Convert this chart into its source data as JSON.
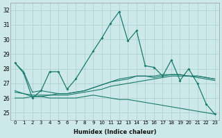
{
  "xlabel": "Humidex (Indice chaleur)",
  "xlim": [
    -0.5,
    23.5
  ],
  "ylim": [
    24.5,
    32.5
  ],
  "yticks": [
    25,
    26,
    27,
    28,
    29,
    30,
    31,
    32
  ],
  "xticks": [
    0,
    1,
    2,
    3,
    4,
    5,
    6,
    7,
    8,
    9,
    10,
    11,
    12,
    13,
    14,
    15,
    16,
    17,
    18,
    19,
    20,
    21,
    22,
    23
  ],
  "bg_color": "#cce8e8",
  "line_color": "#1a7a6e",
  "grid_color": "#aacece",
  "series_main": [
    28.4,
    27.7,
    26.0,
    26.5,
    27.8,
    27.8,
    26.6,
    27.3,
    29.2,
    30.1,
    31.1,
    31.9,
    29.9,
    30.6,
    28.2,
    28.1,
    27.5,
    28.6,
    27.2,
    28.0,
    27.0,
    25.6,
    24.9
  ],
  "series_main_x": [
    0,
    1,
    2,
    3,
    4,
    5,
    6,
    7,
    9,
    10,
    11,
    12,
    13,
    14,
    15,
    16,
    17,
    18,
    19,
    20,
    21,
    22,
    23
  ],
  "series_trend1": [
    26.0,
    26.0,
    26.1,
    26.1,
    26.2,
    26.2,
    26.2,
    26.3,
    26.4,
    26.5,
    26.6,
    26.8,
    26.9,
    27.0,
    27.1,
    27.2,
    27.3,
    27.4,
    27.5,
    27.5,
    27.5,
    27.4,
    27.3,
    27.2
  ],
  "series_trend2": [
    26.4,
    26.3,
    26.2,
    26.2,
    26.2,
    26.3,
    26.3,
    26.4,
    26.5,
    26.7,
    26.9,
    27.1,
    27.2,
    27.3,
    27.5,
    27.5,
    27.5,
    27.6,
    27.6,
    27.6,
    27.5,
    27.5,
    27.4,
    27.3
  ],
  "series_trend3": [
    28.4,
    27.8,
    26.4,
    26.5,
    26.4,
    26.3,
    26.3,
    26.4,
    26.5,
    26.7,
    26.9,
    27.1,
    27.3,
    27.4,
    27.5,
    27.5,
    27.4,
    27.5,
    27.6,
    27.6,
    27.5,
    27.5,
    27.4,
    27.3
  ],
  "series_decline": [
    26.5,
    26.3,
    26.1,
    26.1,
    26.0,
    26.0,
    26.0,
    26.0,
    26.1,
    26.2,
    26.1,
    26.0,
    25.9,
    25.9,
    25.8,
    25.7,
    25.6,
    25.5,
    25.4,
    25.3,
    25.2,
    25.1,
    25.0,
    24.9
  ]
}
